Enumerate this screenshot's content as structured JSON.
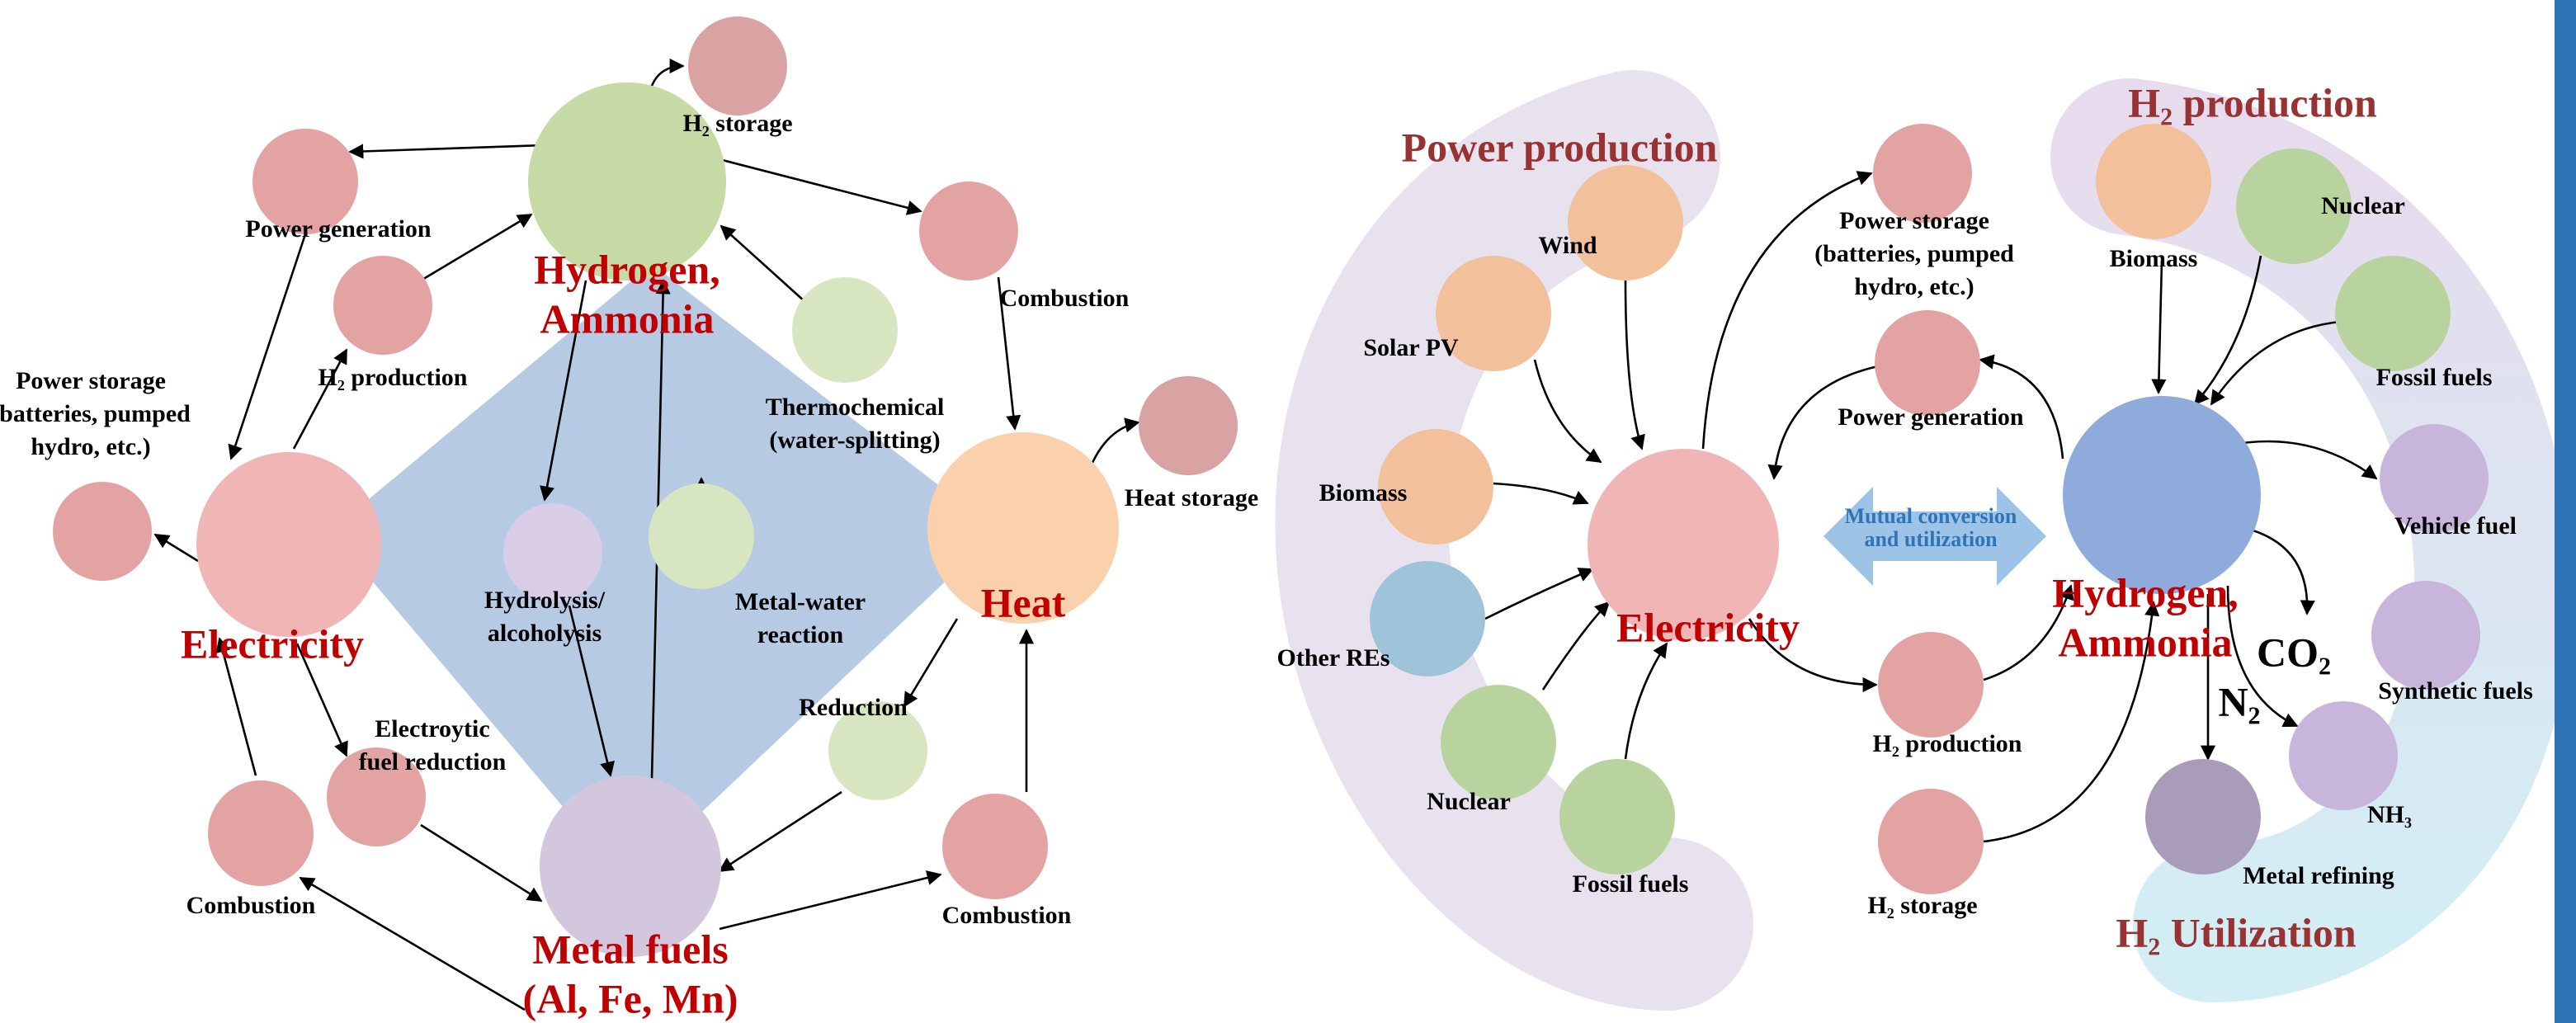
{
  "left_diagram": {
    "nodes": [
      {
        "label": [
          "H₂ storage"
        ]
      },
      {
        "label": [
          "Hydrogen,",
          "Ammonia"
        ]
      },
      {
        "label": [
          "Power generation"
        ]
      },
      {
        "label": [
          "H₂ production"
        ]
      },
      {
        "label": [
          "Combustion"
        ]
      },
      {
        "label": [
          "Thermochemical",
          "(water-splitting)"
        ]
      },
      {
        "label": [
          "Heat storage"
        ]
      },
      {
        "label": [
          "Power storage",
          "(batteries, pumped",
          "hydro, etc.)"
        ]
      },
      {
        "label": [
          "Electricity"
        ]
      },
      {
        "label": [
          "Hydrolysis/",
          "alcoholysis"
        ]
      },
      {
        "label": [
          "Metal-water",
          "reaction"
        ]
      },
      {
        "label": [
          "Heat"
        ]
      },
      {
        "label": [
          "Electroytic",
          "fuel reduction"
        ]
      },
      {
        "label": [
          "Reduction"
        ]
      },
      {
        "label": [
          "Combustion"
        ]
      },
      {
        "label": [
          "Metal fuels",
          "(Al, Fe, Mn)"
        ]
      },
      {
        "label": [
          "Combustion"
        ]
      }
    ]
  },
  "right_diagram": {
    "titles": [
      "Power production",
      "H₂ production",
      "H₂ Utilization"
    ],
    "arrow_label": [
      "Mutual conversion",
      "and utilization"
    ],
    "chemicals": [
      "CO₂",
      "N₂"
    ],
    "nodes": [
      {
        "label": [
          "Wind"
        ]
      },
      {
        "label": [
          "Solar PV"
        ]
      },
      {
        "label": [
          "Biomass"
        ]
      },
      {
        "label": [
          "Other REs"
        ]
      },
      {
        "label": [
          "Nuclear"
        ]
      },
      {
        "label": [
          "Fossil fuels"
        ]
      },
      {
        "label": [
          "Electricity"
        ]
      },
      {
        "label": [
          "Power storage",
          "(batteries, pumped",
          "hydro, etc.)"
        ]
      },
      {
        "label": [
          "Power generation"
        ]
      },
      {
        "label": [
          "H₂ production"
        ]
      },
      {
        "label": [
          "H₂ storage"
        ]
      },
      {
        "label": [
          "Biomass"
        ]
      },
      {
        "label": [
          "Nuclear"
        ]
      },
      {
        "label": [
          "Fossil fuels"
        ]
      },
      {
        "label": [
          "Hydrogen,",
          "Ammonia"
        ]
      },
      {
        "label": [
          "Vehicle fuel"
        ]
      },
      {
        "label": [
          "Synthetic fuels"
        ]
      },
      {
        "label": [
          "NH₃"
        ]
      },
      {
        "label": [
          "Metal refining"
        ]
      }
    ]
  }
}
